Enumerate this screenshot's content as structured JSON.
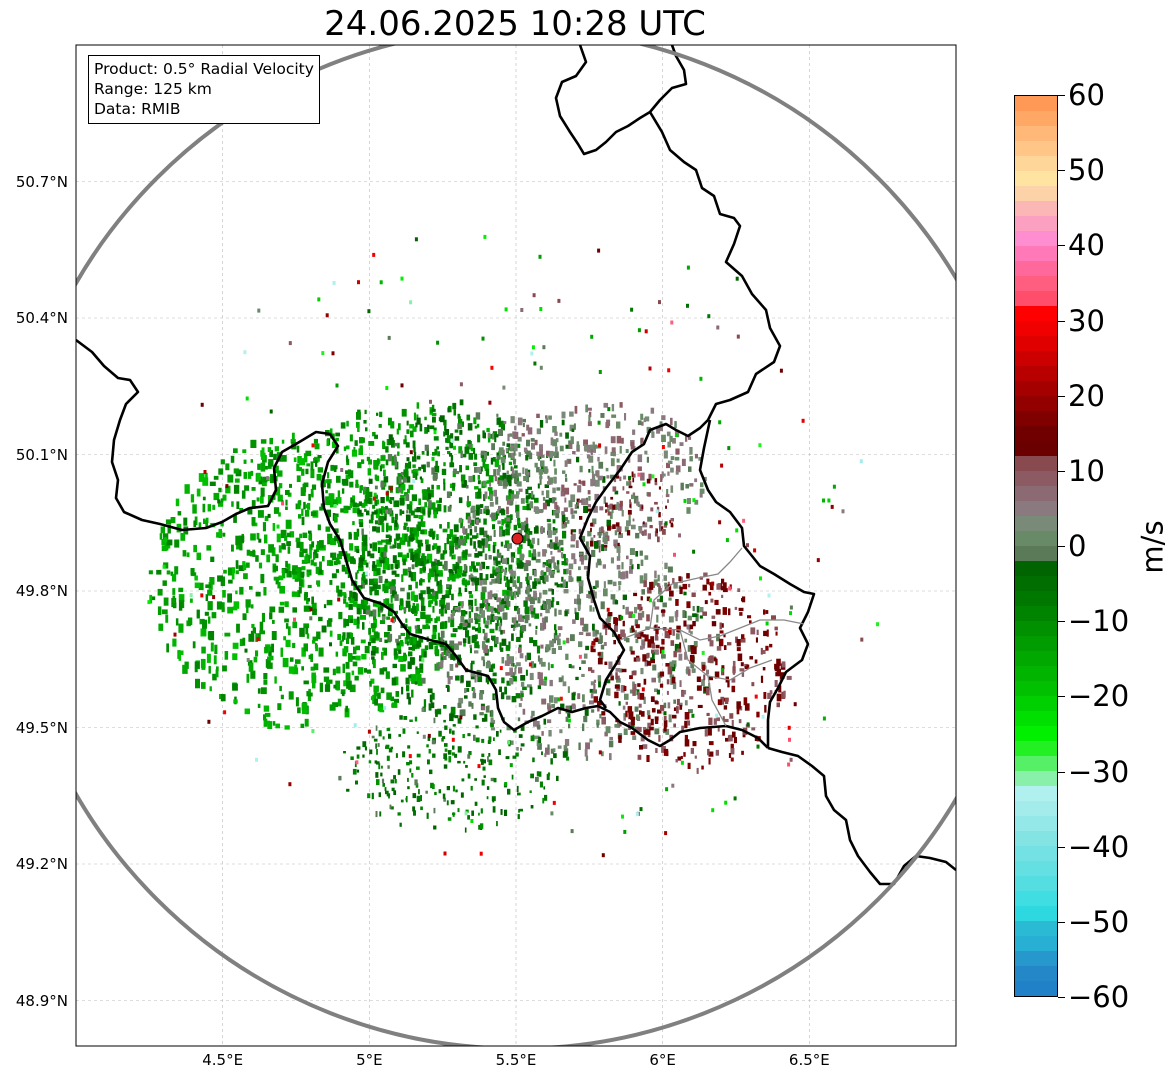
{
  "title": "24.06.2025 10:28 UTC",
  "info": {
    "product": "Product: 0.5° Radial Velocity",
    "range": "Range: 125 km",
    "source": "Data: RMIB"
  },
  "map": {
    "lon_range": [
      4.0,
      7.0
    ],
    "lat_range": [
      48.8,
      51.0
    ],
    "radar_site": {
      "lon": 5.505,
      "lat": 49.915
    },
    "range_ring_color": "#808080",
    "radar_marker_color": "#e02020",
    "lat_ticks": [
      {
        "value": 50.7,
        "label": "50.7°N"
      },
      {
        "value": 50.4,
        "label": "50.4°N"
      },
      {
        "value": 50.1,
        "label": "50.1°N"
      },
      {
        "value": 49.8,
        "label": "49.8°N"
      },
      {
        "value": 49.5,
        "label": "49.5°N"
      },
      {
        "value": 49.2,
        "label": "49.2°N"
      },
      {
        "value": 48.9,
        "label": "48.9°N"
      }
    ],
    "lon_ticks": [
      {
        "value": 4.5,
        "label": "4.5°E"
      },
      {
        "value": 5.0,
        "label": "5°E"
      },
      {
        "value": 5.5,
        "label": "5.5°E"
      },
      {
        "value": 6.0,
        "label": "6°E"
      },
      {
        "value": 6.5,
        "label": "6.5°E"
      }
    ]
  },
  "colorbar": {
    "label": "m/s",
    "min": -60,
    "max": 60,
    "ticks": [
      {
        "value": 60,
        "label": "60"
      },
      {
        "value": 50,
        "label": "50"
      },
      {
        "value": 40,
        "label": "40"
      },
      {
        "value": 30,
        "label": "30"
      },
      {
        "value": 20,
        "label": "20"
      },
      {
        "value": 10,
        "label": "10"
      },
      {
        "value": 0,
        "label": "0"
      },
      {
        "value": -10,
        "label": "−10"
      },
      {
        "value": -20,
        "label": "−20"
      },
      {
        "value": -30,
        "label": "−30"
      },
      {
        "value": -40,
        "label": "−40"
      },
      {
        "value": -50,
        "label": "−50"
      },
      {
        "value": -60,
        "label": "−60"
      }
    ],
    "colors_top_to_bottom": [
      "#ff9955",
      "#ffa866",
      "#ffb877",
      "#ffc688",
      "#ffd699",
      "#ffe3a0",
      "#fcd3a8",
      "#fbb6b6",
      "#fba0c0",
      "#ff8ed0",
      "#ff78b8",
      "#ff689a",
      "#ff5e80",
      "#ff4e6c",
      "#ff0000",
      "#f00000",
      "#e00000",
      "#cc0000",
      "#b80000",
      "#a40000",
      "#920000",
      "#800000",
      "#700000",
      "#6a0000",
      "#884a4e",
      "#8c5a62",
      "#8c6a74",
      "#8a7a80",
      "#7a8a78",
      "#688a66",
      "#5a7a58",
      "#006400",
      "#006e00",
      "#007800",
      "#008400",
      "#009000",
      "#009c00",
      "#00a800",
      "#00b400",
      "#00c000",
      "#00d000",
      "#00e000",
      "#00f000",
      "#22f022",
      "#55f065",
      "#88f0a8",
      "#b0f0ee",
      "#a4ecec",
      "#94e8e8",
      "#84e4e4",
      "#74e2e4",
      "#64e0e2",
      "#54dee2",
      "#40dde2",
      "#2ed8e0",
      "#2aba d4",
      "#28b0d4",
      "#2698cc",
      "#2488c8",
      "#2080c8"
    ]
  }
}
